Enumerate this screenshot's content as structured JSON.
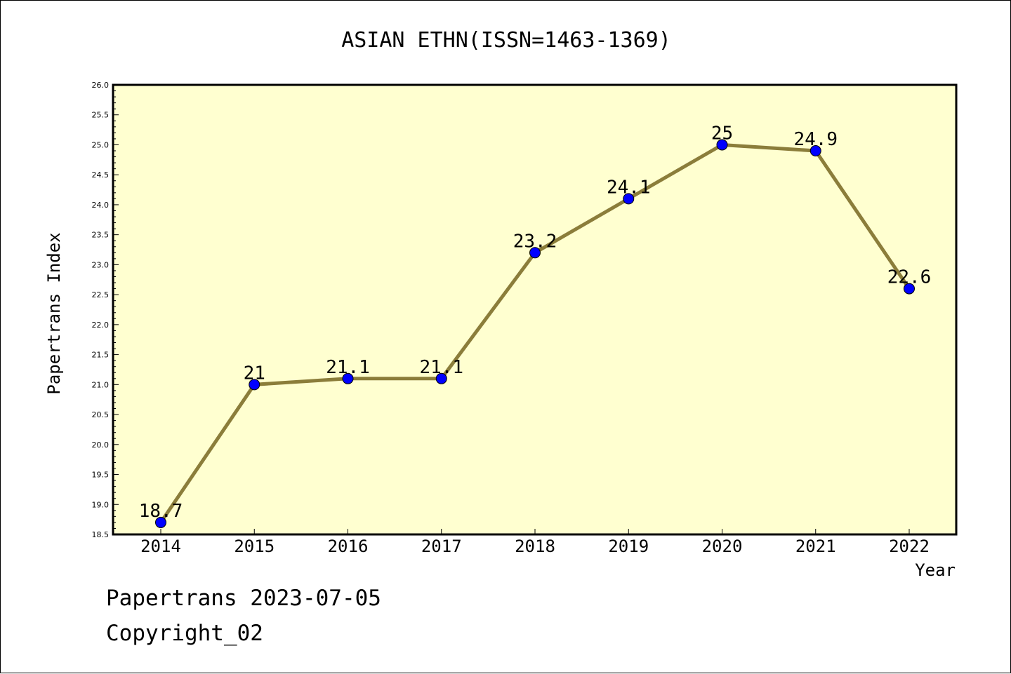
{
  "chart_data": {
    "type": "line",
    "title": "ASIAN ETHN(ISSN=1463-1369)",
    "xlabel": "Year",
    "ylabel": "Papertrans Index",
    "categories": [
      "2014",
      "2015",
      "2016",
      "2017",
      "2018",
      "2019",
      "2020",
      "2021",
      "2022"
    ],
    "series": [
      {
        "values": [
          18.7,
          21,
          21.1,
          21.1,
          23.2,
          24.1,
          25,
          24.9,
          22.6
        ],
        "labels": [
          "18.7",
          "21",
          "21.1",
          "21.1",
          "23.2",
          "24.1",
          "25",
          "24.9",
          "22.6"
        ]
      }
    ],
    "ylim": [
      18.5,
      26.0
    ],
    "ytick_step": 0.5,
    "ytick_labels": [
      "18.5",
      "19.0",
      "19.5",
      "20.0",
      "20.5",
      "21.0",
      "21.5",
      "22.0",
      "22.5",
      "23.0",
      "23.5",
      "24.0",
      "24.5",
      "25.0",
      "25.5",
      "26.0"
    ],
    "grid": false,
    "legend": "none",
    "colors": {
      "plot_background": "#ffffd0",
      "line": "#8b7d3a",
      "marker": "#0000ff",
      "axis": "#000000"
    }
  },
  "footer": {
    "date_text": "Papertrans 2023-07-05",
    "copyright_text": "Copyright_02"
  }
}
